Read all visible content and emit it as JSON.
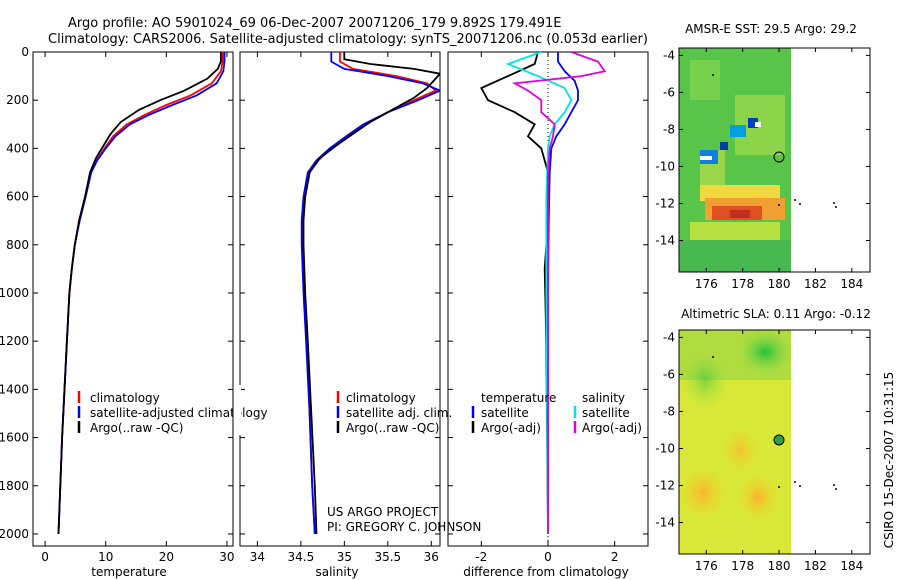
{
  "header": {
    "line1": "Argo profile: AO 5901024_69 06-Dec-2007 20071206_179 9.892S 179.491E",
    "line2": "Climatology: CARS2006. Satellite-adjusted climatology: synTS_20071206.nc (0.053d earlier)"
  },
  "side_label": "CSIRO 15-Dec-2007 10:31:15",
  "project": {
    "line1": "US ARGO PROJECT",
    "line2": "PI: GREGORY C. JOHNSON"
  },
  "colors": {
    "climatology": "#ff0000",
    "satellite": "#0000ff",
    "argo": "#000000",
    "salinity_satellite": "#00e5e5",
    "salinity_argo": "#e000e0"
  },
  "chart_data": [
    {
      "type": "line",
      "id": "temperature",
      "xlabel": "temperature",
      "xlim": [
        -2,
        31
      ],
      "ylim": [
        2050,
        0
      ],
      "xticks": [
        0,
        10,
        20,
        30
      ],
      "yticks": [
        0,
        200,
        400,
        600,
        800,
        1000,
        1200,
        1400,
        1600,
        1800,
        2000
      ],
      "legend": [
        "climatology",
        "satellite-adjusted climatology",
        "Argo(..raw -QC)"
      ],
      "series": [
        {
          "name": "climatology",
          "color": "#ff0000",
          "points": [
            [
              29.3,
              0
            ],
            [
              29.3,
              40
            ],
            [
              29.0,
              80
            ],
            [
              27.5,
              130
            ],
            [
              24.0,
              180
            ],
            [
              20.0,
              220
            ],
            [
              16.5,
              260
            ],
            [
              13.5,
              300
            ],
            [
              11.2,
              350
            ],
            [
              9.8,
              400
            ],
            [
              8.5,
              450
            ],
            [
              7.5,
              500
            ],
            [
              6.6,
              600
            ],
            [
              5.6,
              700
            ],
            [
              4.9,
              800
            ],
            [
              4.4,
              900
            ],
            [
              4.0,
              1000
            ],
            [
              3.6,
              1200
            ],
            [
              3.2,
              1400
            ],
            [
              2.8,
              1600
            ],
            [
              2.5,
              1800
            ],
            [
              2.2,
              2000
            ]
          ]
        },
        {
          "name": "satellite-adjusted climatology",
          "color": "#0000ff",
          "points": [
            [
              29.6,
              0
            ],
            [
              29.6,
              40
            ],
            [
              29.4,
              80
            ],
            [
              28.3,
              130
            ],
            [
              25.0,
              180
            ],
            [
              21.0,
              220
            ],
            [
              17.2,
              260
            ],
            [
              14.0,
              300
            ],
            [
              11.6,
              350
            ],
            [
              10.0,
              400
            ],
            [
              8.6,
              450
            ],
            [
              7.6,
              500
            ],
            [
              6.7,
              600
            ],
            [
              5.7,
              700
            ],
            [
              4.9,
              800
            ],
            [
              4.4,
              900
            ],
            [
              4.0,
              1000
            ],
            [
              3.6,
              1200
            ],
            [
              3.2,
              1400
            ],
            [
              2.8,
              1600
            ],
            [
              2.5,
              1800
            ],
            [
              2.2,
              2000
            ]
          ]
        },
        {
          "name": "Argo(..raw -QC)",
          "color": "#000000",
          "points": [
            [
              29.0,
              0
            ],
            [
              29.0,
              40
            ],
            [
              28.5,
              70
            ],
            [
              26.8,
              110
            ],
            [
              23.0,
              160
            ],
            [
              19.0,
              200
            ],
            [
              15.5,
              240
            ],
            [
              12.5,
              290
            ],
            [
              10.8,
              340
            ],
            [
              9.6,
              390
            ],
            [
              8.4,
              440
            ],
            [
              7.4,
              500
            ],
            [
              6.6,
              600
            ],
            [
              5.6,
              700
            ],
            [
              4.9,
              800
            ],
            [
              4.4,
              900
            ],
            [
              4.0,
              1000
            ],
            [
              3.6,
              1200
            ],
            [
              3.2,
              1400
            ],
            [
              2.8,
              1600
            ],
            [
              2.5,
              1800
            ],
            [
              2.2,
              2000
            ]
          ]
        }
      ]
    },
    {
      "type": "line",
      "id": "salinity",
      "xlabel": "salinity",
      "xlim": [
        33.8,
        36.1
      ],
      "ylim": [
        2050,
        0
      ],
      "xticks": [
        34,
        34.5,
        35,
        35.5,
        36
      ],
      "legend": [
        "climatology",
        "satellite adj. clim.",
        "Argo(..raw -QC)"
      ],
      "series": [
        {
          "name": "climatology",
          "color": "#ff0000",
          "points": [
            [
              34.95,
              0
            ],
            [
              34.95,
              40
            ],
            [
              35.1,
              70
            ],
            [
              35.6,
              100
            ],
            [
              35.95,
              130
            ],
            [
              36.05,
              160
            ],
            [
              35.8,
              200
            ],
            [
              35.5,
              250
            ],
            [
              35.25,
              300
            ],
            [
              35.05,
              350
            ],
            [
              34.85,
              400
            ],
            [
              34.7,
              450
            ],
            [
              34.6,
              500
            ],
            [
              34.55,
              600
            ],
            [
              34.52,
              700
            ],
            [
              34.52,
              800
            ],
            [
              34.54,
              1000
            ],
            [
              34.57,
              1200
            ],
            [
              34.6,
              1500
            ],
            [
              34.63,
              1800
            ],
            [
              34.66,
              2000
            ]
          ]
        },
        {
          "name": "satellite adj. clim.",
          "color": "#0000ff",
          "points": [
            [
              34.85,
              0
            ],
            [
              34.85,
              40
            ],
            [
              35.0,
              70
            ],
            [
              35.5,
              100
            ],
            [
              35.9,
              130
            ],
            [
              36.1,
              160
            ],
            [
              35.85,
              200
            ],
            [
              35.5,
              250
            ],
            [
              35.22,
              300
            ],
            [
              35.02,
              350
            ],
            [
              34.83,
              400
            ],
            [
              34.68,
              450
            ],
            [
              34.58,
              500
            ],
            [
              34.53,
              600
            ],
            [
              34.51,
              700
            ],
            [
              34.51,
              800
            ],
            [
              34.53,
              1000
            ],
            [
              34.56,
              1200
            ],
            [
              34.6,
              1500
            ],
            [
              34.63,
              1800
            ],
            [
              34.66,
              2000
            ]
          ]
        },
        {
          "name": "Argo(..raw -QC)",
          "color": "#000000",
          "points": [
            [
              35.0,
              0
            ],
            [
              35.0,
              30
            ],
            [
              35.3,
              50
            ],
            [
              35.8,
              70
            ],
            [
              36.1,
              90
            ],
            [
              36.05,
              110
            ],
            [
              35.95,
              150
            ],
            [
              35.8,
              190
            ],
            [
              35.55,
              240
            ],
            [
              35.3,
              290
            ],
            [
              35.1,
              340
            ],
            [
              34.9,
              390
            ],
            [
              34.72,
              440
            ],
            [
              34.6,
              500
            ],
            [
              34.55,
              600
            ],
            [
              34.53,
              700
            ],
            [
              34.53,
              800
            ],
            [
              34.55,
              1000
            ],
            [
              34.58,
              1200
            ],
            [
              34.62,
              1500
            ],
            [
              34.66,
              1800
            ],
            [
              34.68,
              2000
            ]
          ]
        }
      ]
    },
    {
      "type": "line",
      "id": "difference",
      "xlabel": "difference from climatology",
      "xlim": [
        -3,
        3
      ],
      "ylim": [
        2050,
        0
      ],
      "xticks": [
        -2,
        0,
        2
      ],
      "legend_headers": [
        "temperature",
        "salinity"
      ],
      "legend": [
        "satellite",
        "Argo(-adj)",
        "satellite",
        "Argo(-adj)"
      ],
      "series": [
        {
          "name": "temperature satellite",
          "color": "#0000ff",
          "points": [
            [
              0.3,
              0
            ],
            [
              0.3,
              40
            ],
            [
              0.5,
              80
            ],
            [
              0.8,
              120
            ],
            [
              0.9,
              160
            ],
            [
              0.9,
              200
            ],
            [
              0.7,
              250
            ],
            [
              0.5,
              300
            ],
            [
              0.25,
              350
            ],
            [
              0.1,
              400
            ],
            [
              0.05,
              500
            ],
            [
              0.02,
              700
            ],
            [
              0.0,
              1000
            ],
            [
              0.0,
              2000
            ]
          ]
        },
        {
          "name": "temperature Argo(-adj)",
          "color": "#000000",
          "points": [
            [
              -0.3,
              0
            ],
            [
              -0.4,
              50
            ],
            [
              -1.2,
              100
            ],
            [
              -2.0,
              150
            ],
            [
              -1.8,
              200
            ],
            [
              -1.0,
              250
            ],
            [
              -0.4,
              300
            ],
            [
              -0.6,
              350
            ],
            [
              -0.2,
              400
            ],
            [
              0.0,
              500
            ],
            [
              0.0,
              700
            ],
            [
              -0.1,
              900
            ],
            [
              -0.05,
              1200
            ],
            [
              0.0,
              2000
            ]
          ]
        },
        {
          "name": "salinity satellite",
          "color": "#00e5e5",
          "points": [
            [
              -0.2,
              0
            ],
            [
              -1.2,
              50
            ],
            [
              -0.3,
              100
            ],
            [
              0.5,
              150
            ],
            [
              0.7,
              200
            ],
            [
              0.5,
              250
            ],
            [
              0.2,
              300
            ],
            [
              0.05,
              350
            ],
            [
              0.0,
              400
            ],
            [
              -0.05,
              600
            ],
            [
              -0.05,
              1000
            ],
            [
              0.0,
              2000
            ]
          ]
        },
        {
          "name": "salinity Argo(-adj)",
          "color": "#e000e0",
          "points": [
            [
              0.7,
              0
            ],
            [
              1.5,
              40
            ],
            [
              1.7,
              80
            ],
            [
              1.0,
              100
            ],
            [
              -1.0,
              130
            ],
            [
              -0.6,
              160
            ],
            [
              -0.2,
              200
            ],
            [
              -0.2,
              250
            ],
            [
              0.2,
              300
            ],
            [
              0.15,
              350
            ],
            [
              0.05,
              400
            ],
            [
              0.0,
              500
            ],
            [
              0.0,
              2000
            ]
          ]
        }
      ]
    },
    {
      "type": "heatmap",
      "id": "sst-map",
      "title": "AMSR-E SST: 29.5  Argo: 29.2",
      "xlim": [
        174.5,
        185
      ],
      "ylim": [
        -15.7,
        -3.6
      ],
      "xticks": [
        176,
        178,
        180,
        182,
        184
      ],
      "yticks": [
        -4,
        -6,
        -8,
        -10,
        -12,
        -14
      ],
      "float_position": [
        179.49,
        -9.89
      ]
    },
    {
      "type": "heatmap",
      "id": "sla-map",
      "title": "Altimetric SLA: 0.11  Argo: -0.12",
      "xlim": [
        174.5,
        185
      ],
      "ylim": [
        -15.7,
        -3.6
      ],
      "xticks": [
        176,
        178,
        180,
        182,
        184
      ],
      "yticks": [
        -4,
        -6,
        -8,
        -10,
        -12,
        -14
      ],
      "float_position": [
        179.49,
        -9.89
      ]
    }
  ]
}
